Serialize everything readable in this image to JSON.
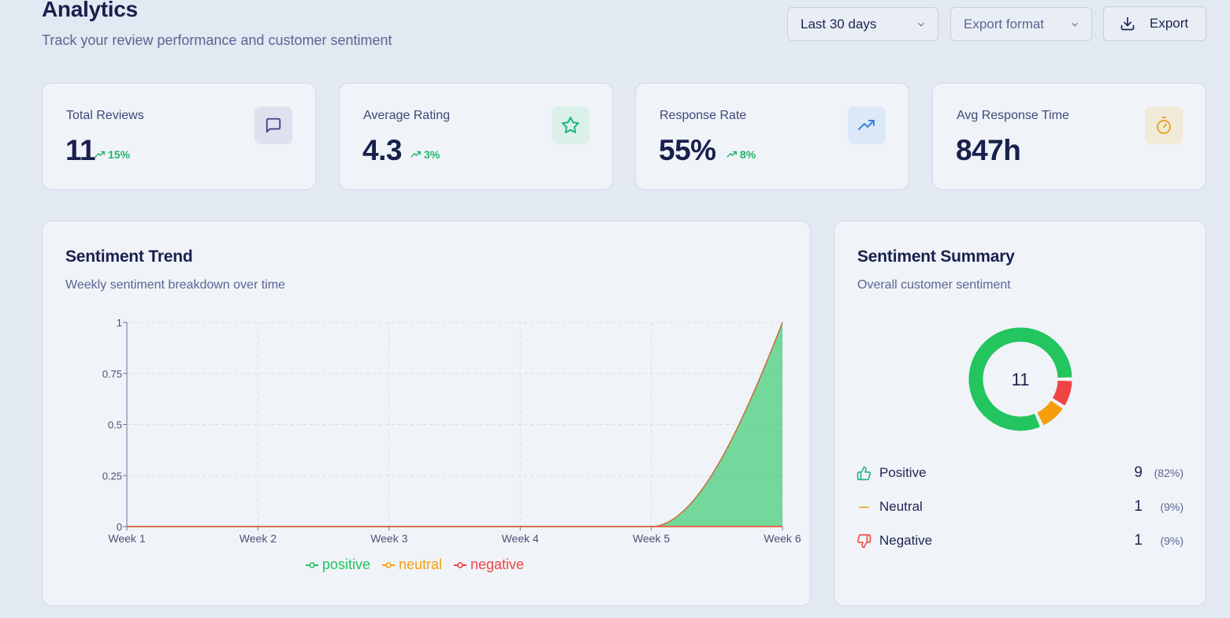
{
  "header": {
    "title": "Analytics",
    "subtitle": "Track your review performance and customer sentiment"
  },
  "controls": {
    "period": "Last 30 days",
    "export_format_placeholder": "Export format",
    "export_label": "Export"
  },
  "stats": [
    {
      "label": "Total Reviews",
      "value": "11",
      "trend": "15%",
      "icon": "message-square-icon",
      "accent": "#4a4f8c"
    },
    {
      "label": "Average Rating",
      "value": "4.3",
      "trend": "3%",
      "icon": "star-icon",
      "accent": "#1fb37a"
    },
    {
      "label": "Response Rate",
      "value": "55%",
      "trend": "8%",
      "icon": "trending-up-icon",
      "accent": "#3b82d6"
    },
    {
      "label": "Avg Response Time",
      "value": "847h",
      "trend": "",
      "icon": "timer-icon",
      "accent": "#e3a82b"
    }
  ],
  "trend_panel": {
    "title": "Sentiment Trend",
    "subtitle": "Weekly sentiment breakdown over time"
  },
  "summary_panel": {
    "title": "Sentiment Summary",
    "subtitle": "Overall customer sentiment",
    "total": "11",
    "rows": [
      {
        "name": "Positive",
        "count": "9",
        "pct": "(82%)",
        "icon": "thumbs-up-icon",
        "color": "#22c55e"
      },
      {
        "name": "Neutral",
        "count": "1",
        "pct": "(9%)",
        "icon": "minus-icon",
        "color": "#f59e0b"
      },
      {
        "name": "Negative",
        "count": "1",
        "pct": "(9%)",
        "icon": "thumbs-down-icon",
        "color": "#ef4444"
      }
    ]
  },
  "chart_data": [
    {
      "type": "area",
      "x": [
        "Week 1",
        "Week 2",
        "Week 3",
        "Week 4",
        "Week 5",
        "Week 6"
      ],
      "series": [
        {
          "name": "positive",
          "values": [
            0,
            0,
            0,
            0,
            0,
            1
          ],
          "color": "#22c55e"
        },
        {
          "name": "neutral",
          "values": [
            0,
            0,
            0,
            0,
            0,
            0
          ],
          "color": "#f59e0b"
        },
        {
          "name": "negative",
          "values": [
            0,
            0,
            0,
            0,
            0,
            0
          ],
          "color": "#ef4444"
        }
      ],
      "yticks": [
        "0",
        "0.25",
        "0.5",
        "0.75",
        "1"
      ],
      "ylim": [
        0,
        1
      ],
      "grid": true,
      "legend": "bottom"
    },
    {
      "type": "pie",
      "categories": [
        "Positive",
        "Neutral",
        "Negative"
      ],
      "values": [
        9,
        1,
        1
      ],
      "colors": [
        "#22c55e",
        "#f59e0b",
        "#ef4444"
      ]
    }
  ]
}
